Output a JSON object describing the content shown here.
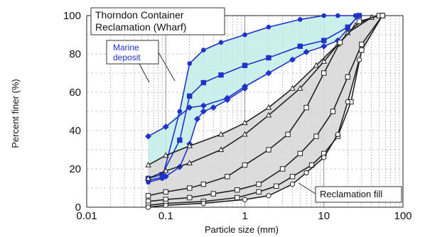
{
  "chart_data": {
    "type": "line",
    "title_lines": [
      "Thorndon Container",
      "Reclamation (Wharf)"
    ],
    "xlabel": "Particle size  (mm)",
    "ylabel": "Percent finer (%)",
    "xscale": "log",
    "xlim": [
      0.01,
      100
    ],
    "ylim": [
      0,
      100
    ],
    "x_ticks": [
      0.01,
      0.1,
      1,
      10,
      100
    ],
    "x_tick_labels": [
      "0.01",
      "0.1",
      "1",
      "10",
      "100"
    ],
    "y_ticks": [
      0,
      20,
      40,
      60,
      80,
      100
    ],
    "y_tick_labels": [
      "0",
      "20",
      "40",
      "60",
      "80",
      "100"
    ],
    "grid": true,
    "annotations": [
      {
        "text": "Marine",
        "group": "marine"
      },
      {
        "text": "deposit",
        "group": "marine"
      },
      {
        "text": "Reclamation fill",
        "group": "reclamation"
      }
    ],
    "colors": {
      "marine": "#1f33c8",
      "marine_fill": "#c2ece8",
      "reclamation": "#222222",
      "reclamation_fill": "#d8d8d8"
    },
    "series": [
      {
        "group": "marine",
        "marker": "circle",
        "x": [
          0.06,
          0.09,
          0.15,
          0.2,
          0.3,
          0.5,
          1,
          2,
          5,
          10,
          15,
          25
        ],
        "y": [
          13,
          15,
          50,
          75,
          82,
          86,
          90,
          94,
          98,
          100,
          100,
          100
        ]
      },
      {
        "group": "marine",
        "marker": "square",
        "x": [
          0.06,
          0.09,
          0.15,
          0.2,
          0.3,
          0.5,
          1,
          2,
          5,
          10,
          20,
          28
        ],
        "y": [
          15,
          17,
          35,
          58,
          65,
          69,
          74,
          78,
          84,
          87,
          94,
          100
        ]
      },
      {
        "group": "marine",
        "marker": "diamond",
        "x": [
          0.06,
          0.1,
          0.2,
          0.3,
          0.6,
          1,
          2,
          4,
          6,
          10,
          15,
          20,
          27
        ],
        "y": [
          37,
          42,
          52,
          53,
          57,
          63,
          70,
          77,
          81,
          84,
          87,
          93,
          100
        ]
      },
      {
        "group": "marine",
        "marker": "diamond",
        "x": [
          0.06,
          0.1,
          0.15,
          0.2,
          0.25,
          0.3,
          0.4,
          0.6,
          1
        ],
        "y": [
          14,
          16,
          21,
          33,
          46,
          50,
          52,
          56,
          62
        ]
      },
      {
        "group": "reclamation",
        "marker": "triangle",
        "x": [
          0.06,
          0.1,
          0.2,
          0.5,
          1,
          2,
          4,
          8,
          15,
          25,
          40,
          55
        ],
        "y": [
          22,
          27,
          32,
          38,
          44,
          52,
          62,
          74,
          85,
          95,
          99,
          100
        ]
      },
      {
        "group": "reclamation",
        "marker": "triangle",
        "x": [
          0.06,
          0.1,
          0.2,
          0.5,
          1,
          2,
          5,
          10,
          20,
          40
        ],
        "y": [
          15,
          19,
          23,
          30,
          38,
          48,
          62,
          76,
          91,
          99
        ]
      },
      {
        "group": "reclamation",
        "marker": "square",
        "x": [
          0.06,
          0.1,
          0.2,
          0.3,
          0.6,
          1,
          2,
          3.5,
          6,
          10,
          16,
          28,
          50
        ],
        "y": [
          6,
          8,
          10,
          12,
          16,
          22,
          30,
          38,
          52,
          70,
          86,
          97,
          100
        ]
      },
      {
        "group": "reclamation",
        "marker": "square",
        "x": [
          0.06,
          0.1,
          0.2,
          0.4,
          0.8,
          1.5,
          3,
          5,
          8,
          13,
          20,
          30,
          55
        ],
        "y": [
          3,
          4,
          5,
          7,
          9,
          12,
          20,
          28,
          37,
          50,
          68,
          85,
          100
        ]
      },
      {
        "group": "reclamation",
        "marker": "square",
        "x": [
          0.06,
          0.1,
          0.3,
          0.8,
          1.5,
          2.5,
          4,
          7,
          10,
          15,
          22,
          30,
          55
        ],
        "y": [
          1,
          2,
          3,
          5,
          8,
          11,
          16,
          22,
          28,
          37,
          55,
          82,
          100
        ]
      },
      {
        "group": "reclamation",
        "marker": "circle",
        "x": [
          0.06,
          0.1,
          0.3,
          1,
          2,
          4,
          6,
          10,
          15,
          20,
          28
        ],
        "y": [
          0,
          1,
          2,
          4,
          6,
          12,
          18,
          26,
          38,
          55,
          77
        ]
      }
    ],
    "bands": [
      {
        "group": "marine",
        "upper": {
          "x": [
            0.06,
            0.1,
            0.15,
            0.2,
            0.3,
            0.5,
            1,
            2,
            5,
            10,
            15,
            25
          ],
          "y": [
            37,
            42,
            50,
            75,
            82,
            86,
            90,
            94,
            98,
            100,
            100,
            100
          ]
        },
        "lower": {
          "x": [
            0.06,
            0.1,
            0.15,
            0.2,
            0.25,
            0.3,
            0.6,
            1,
            2,
            4,
            6,
            10,
            15,
            20,
            27
          ],
          "y": [
            13,
            16,
            21,
            33,
            46,
            50,
            56,
            62,
            70,
            77,
            81,
            84,
            87,
            93,
            100
          ]
        }
      },
      {
        "group": "reclamation",
        "upper": {
          "x": [
            0.06,
            0.1,
            0.2,
            0.5,
            1,
            2,
            4,
            8,
            15,
            25,
            40,
            55
          ],
          "y": [
            22,
            27,
            32,
            38,
            44,
            52,
            62,
            74,
            85,
            95,
            99,
            100
          ]
        },
        "lower": {
          "x": [
            0.06,
            0.1,
            0.3,
            1,
            2,
            4,
            6,
            10,
            15,
            20,
            28,
            55
          ],
          "y": [
            0,
            1,
            2,
            4,
            6,
            12,
            18,
            26,
            38,
            55,
            77,
            100
          ]
        }
      }
    ]
  }
}
